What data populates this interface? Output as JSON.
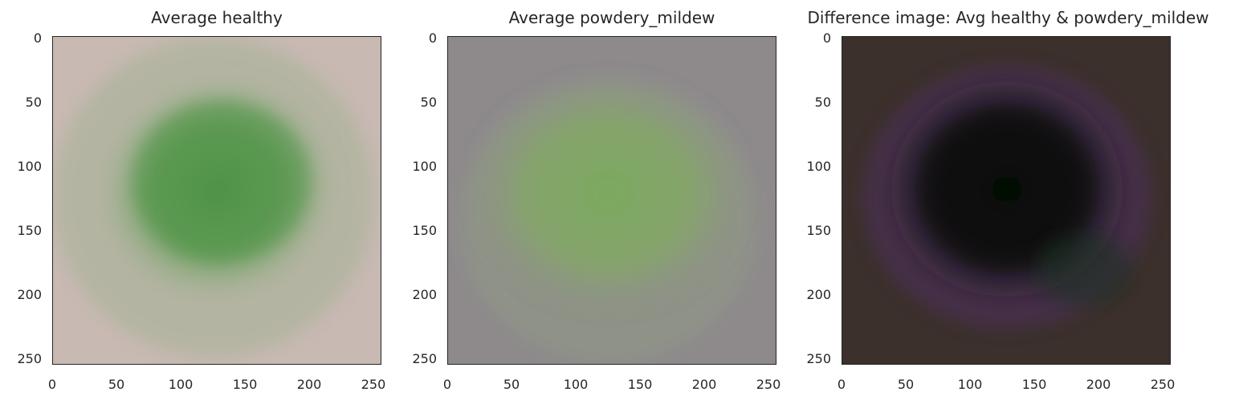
{
  "chart_data": [
    {
      "type": "image",
      "title": "Average healthy",
      "xlabel": "",
      "ylabel": "",
      "xlim": [
        0,
        255
      ],
      "ylim": [
        255,
        0
      ],
      "xticks": [
        "0",
        "50",
        "100",
        "150",
        "200",
        "250"
      ],
      "yticks": [
        "0",
        "50",
        "100",
        "150",
        "200",
        "250"
      ],
      "background_color": "#c8b9b3",
      "subject_color": "#4f9446",
      "grid": false
    },
    {
      "type": "image",
      "title": "Average powdery_mildew",
      "xlabel": "",
      "ylabel": "",
      "xlim": [
        0,
        255
      ],
      "ylim": [
        255,
        0
      ],
      "xticks": [
        "0",
        "50",
        "100",
        "150",
        "200",
        "250"
      ],
      "yticks": [
        "0",
        "50",
        "100",
        "150",
        "200",
        "250"
      ],
      "background_color": "#8e8a8c",
      "subject_color": "#78a85a",
      "grid": false
    },
    {
      "type": "image",
      "title": "Difference image: Avg healthy & powdery_mildew",
      "xlabel": "",
      "ylabel": "",
      "xlim": [
        0,
        255
      ],
      "ylim": [
        255,
        0
      ],
      "xticks": [
        "0",
        "50",
        "100",
        "150",
        "200",
        "250"
      ],
      "yticks": [
        "0",
        "50",
        "100",
        "150",
        "200",
        "250"
      ],
      "background_color": "#3b302b",
      "subject_color": "#0c100c",
      "rim_color": "#4e2f5e",
      "grid": false
    }
  ]
}
